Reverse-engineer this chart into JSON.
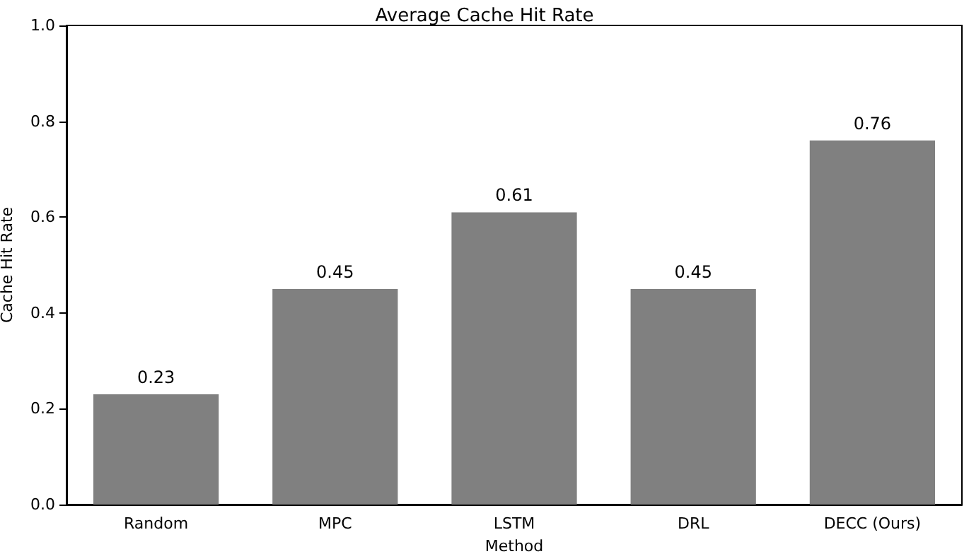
{
  "chart_data": {
    "type": "bar",
    "title": "Average Cache Hit Rate",
    "xlabel": "Method",
    "ylabel": "Cache Hit Rate",
    "categories": [
      "Random",
      "MPC",
      "LSTM",
      "DRL",
      "DECC (Ours)"
    ],
    "values": [
      0.23,
      0.45,
      0.61,
      0.45,
      0.76
    ],
    "color": "#808080",
    "ylim": [
      0,
      1
    ],
    "yticks": [
      {
        "value": 0,
        "label": "0.0"
      },
      0.2,
      0.4,
      0.6,
      0.8,
      {
        "value": 1,
        "label": "1.0"
      }
    ],
    "data_labels": true,
    "grid": false
  }
}
